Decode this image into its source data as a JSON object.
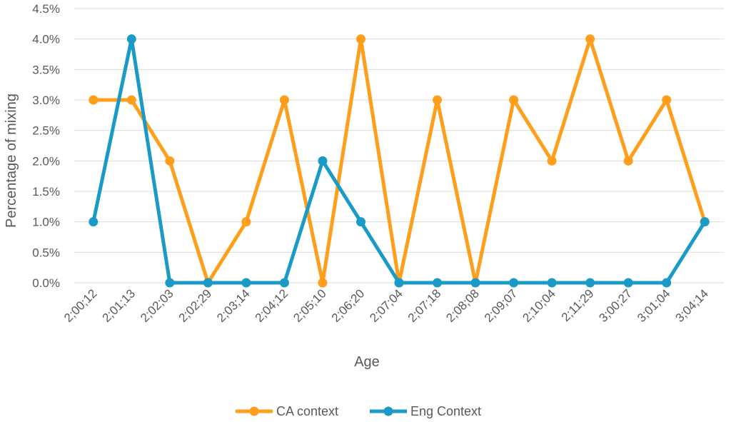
{
  "chart_data": {
    "type": "line",
    "title": "",
    "xlabel": "Age",
    "ylabel": "Percentage of mixing",
    "ylim": [
      0,
      0.045
    ],
    "y_tick_labels": [
      "0.0%",
      "0.5%",
      "1.0%",
      "1.5%",
      "2.0%",
      "2.5%",
      "3.0%",
      "3.5%",
      "4.0%",
      "4.5%"
    ],
    "categories": [
      "2;00;12",
      "2;01;13",
      "2;02;03",
      "2;02;29",
      "2;03;14",
      "2;04;12",
      "2;05;10",
      "2;06;20",
      "2;07;04",
      "2;07;18",
      "2;08;08",
      "2;09;07",
      "2;10;04",
      "2;11;29",
      "3;00;27",
      "3;01;04",
      "3;04;14"
    ],
    "series": [
      {
        "name": "CA context",
        "color": "#FF9E1B",
        "values": [
          0.03,
          0.03,
          0.02,
          0.0,
          0.01,
          0.03,
          0.0,
          0.04,
          0.0,
          0.03,
          0.0,
          0.03,
          0.02,
          0.04,
          0.02,
          0.03,
          0.01
        ]
      },
      {
        "name": "Eng Context",
        "color": "#1A9BC7",
        "values": [
          0.01,
          0.04,
          0.0,
          0.0,
          0.0,
          0.0,
          0.02,
          0.01,
          0.0,
          0.0,
          0.0,
          0.0,
          0.0,
          0.0,
          0.0,
          0.0,
          0.01
        ]
      }
    ],
    "grid": true,
    "legend_position": "bottom"
  }
}
